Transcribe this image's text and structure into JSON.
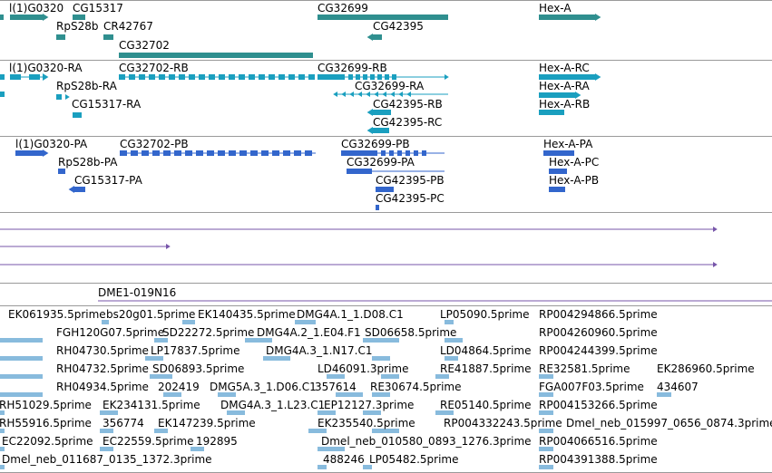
{
  "colors": {
    "gene": "#2f8f8f",
    "transcript": "#1a9fbf",
    "protein": "#3366cc",
    "clone": "#7755aa",
    "est": "#88bbdd",
    "separator": "#9a9a9a"
  },
  "tracks": {
    "genes": {
      "labels": [
        {
          "id": "l1g0320",
          "text": "l(1)G0320"
        },
        {
          "id": "cg15317",
          "text": "CG15317"
        },
        {
          "id": "rps28b",
          "text": "RpS28b"
        },
        {
          "id": "cr42767",
          "text": "CR42767"
        },
        {
          "id": "cg32702",
          "text": "CG32702"
        },
        {
          "id": "cg32699",
          "text": "CG32699"
        },
        {
          "id": "cg42395",
          "text": "CG42395"
        },
        {
          "id": "hexa",
          "text": "Hex-A"
        }
      ]
    },
    "transcripts": {
      "labels": [
        {
          "id": "l1g0320-ra",
          "text": "l(1)G0320-RA"
        },
        {
          "id": "cg32702-rb",
          "text": "CG32702-RB"
        },
        {
          "id": "cg32699-rb",
          "text": "CG32699-RB"
        },
        {
          "id": "hexa-rc",
          "text": "Hex-A-RC"
        },
        {
          "id": "rps28b-ra",
          "text": "RpS28b-RA"
        },
        {
          "id": "cg32699-ra",
          "text": "CG32699-RA"
        },
        {
          "id": "hexa-ra",
          "text": "Hex-A-RA"
        },
        {
          "id": "cg15317-ra",
          "text": "CG15317-RA"
        },
        {
          "id": "cg42395-rb",
          "text": "CG42395-RB"
        },
        {
          "id": "hexa-rb",
          "text": "Hex-A-RB"
        },
        {
          "id": "cg42395-rc",
          "text": "CG42395-RC"
        }
      ]
    },
    "proteins": {
      "labels": [
        {
          "id": "l1g0320-pa",
          "text": "l(1)G0320-PA"
        },
        {
          "id": "cg32702-pb",
          "text": "CG32702-PB"
        },
        {
          "id": "cg32699-pb",
          "text": "CG32699-PB"
        },
        {
          "id": "hexa-pa",
          "text": "Hex-A-PA"
        },
        {
          "id": "rps28b-pa",
          "text": "RpS28b-PA"
        },
        {
          "id": "cg32699-pa",
          "text": "CG32699-PA"
        },
        {
          "id": "hexa-pc",
          "text": "Hex-A-PC"
        },
        {
          "id": "cg15317-pa",
          "text": "CG15317-PA"
        },
        {
          "id": "cg42395-pb",
          "text": "CG42395-PB"
        },
        {
          "id": "hexa-pb",
          "text": "Hex-A-PB"
        },
        {
          "id": "cg42395-pc",
          "text": "CG42395-PC"
        }
      ]
    },
    "clones": {
      "labels": [
        {
          "id": "dme1-019n16",
          "text": "DME1-019N16"
        }
      ]
    },
    "ests": {
      "labels": [
        {
          "id": "e1",
          "text": "EK061935.5prime"
        },
        {
          "id": "e2",
          "text": "bs20g01.5prime"
        },
        {
          "id": "e3",
          "text": "EK140435.5prime"
        },
        {
          "id": "e4",
          "text": "DMG4A.1_1.D08.C1"
        },
        {
          "id": "e5",
          "text": "LP05090.5prime"
        },
        {
          "id": "e6",
          "text": "RP004294866.5prime"
        },
        {
          "id": "e7",
          "text": "FGH120G07.5prime"
        },
        {
          "id": "e8",
          "text": "SD22272.5prime"
        },
        {
          "id": "e9",
          "text": "DMG4A.2_1.E04.F1"
        },
        {
          "id": "e10",
          "text": "SD06658.5prime"
        },
        {
          "id": "e11",
          "text": "RP004260960.5prime"
        },
        {
          "id": "e12",
          "text": "RH04730.5prime"
        },
        {
          "id": "e13",
          "text": "LP17837.5prime"
        },
        {
          "id": "e14",
          "text": "DMG4A.3_1.N17.C1"
        },
        {
          "id": "e15",
          "text": "LD04864.5prime"
        },
        {
          "id": "e16",
          "text": "RP004244399.5prime"
        },
        {
          "id": "e17",
          "text": "RH04732.5prime"
        },
        {
          "id": "e18",
          "text": "SD06893.5prime"
        },
        {
          "id": "e19",
          "text": "LD46091.3prime"
        },
        {
          "id": "e20",
          "text": "RE41887.5prime"
        },
        {
          "id": "e21",
          "text": "RE32581.5prime"
        },
        {
          "id": "e22",
          "text": "EK286960.5prime"
        },
        {
          "id": "e23",
          "text": "RH04934.5prime"
        },
        {
          "id": "e24",
          "text": "202419"
        },
        {
          "id": "e25",
          "text": "DMG5A.3_1.D06.C1"
        },
        {
          "id": "e26",
          "text": "357614"
        },
        {
          "id": "e27",
          "text": "RE30674.5prime"
        },
        {
          "id": "e28",
          "text": "FGA007F03.5prime"
        },
        {
          "id": "e29",
          "text": "434607"
        },
        {
          "id": "e30",
          "text": "RH51029.5prime"
        },
        {
          "id": "e31",
          "text": "EK234131.5prime"
        },
        {
          "id": "e32",
          "text": "DMG4A.3_1.L23.C1"
        },
        {
          "id": "e33",
          "text": "EP12127.3prime"
        },
        {
          "id": "e34",
          "text": "RE05140.5prime"
        },
        {
          "id": "e35",
          "text": "RP004153266.5prime"
        },
        {
          "id": "e36",
          "text": "RH55916.5prime"
        },
        {
          "id": "e37",
          "text": "356774"
        },
        {
          "id": "e38",
          "text": "EK147239.5prime"
        },
        {
          "id": "e39",
          "text": "EK235540.5prime"
        },
        {
          "id": "e40",
          "text": "RP004332243.5prime"
        },
        {
          "id": "e41",
          "text": "Dmel_neb_015997_0656_0874.3prime"
        },
        {
          "id": "e42",
          "text": "EC22092.5prime"
        },
        {
          "id": "e43",
          "text": "EC22559.5prime"
        },
        {
          "id": "e44",
          "text": "192895"
        },
        {
          "id": "e45",
          "text": "Dmel_neb_010580_0893_1276.3prime"
        },
        {
          "id": "e46",
          "text": "RP004066516.5prime"
        },
        {
          "id": "e47",
          "text": "Dmel_neb_011687_0135_1372.3prime"
        },
        {
          "id": "e48",
          "text": "488246"
        },
        {
          "id": "e49",
          "text": "LP05482.5prime"
        },
        {
          "id": "e50",
          "text": "RP004391388.5prime"
        }
      ]
    }
  }
}
